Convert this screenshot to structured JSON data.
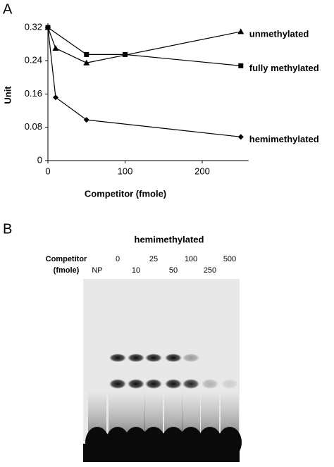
{
  "chart_data": {
    "type": "line",
    "panel_label": "A",
    "y_label": "Unit",
    "x_label": "Competitor (fmole)",
    "xlim": [
      0,
      260
    ],
    "xticks": [
      0,
      100,
      200
    ],
    "ylim": [
      0,
      0.33
    ],
    "yticks": [
      0,
      0.08,
      0.16,
      0.24,
      0.32
    ],
    "series": [
      {
        "name": "unmethylated",
        "color": "#000000",
        "marker": "triangle",
        "x": [
          0,
          10,
          50,
          250
        ],
        "values": [
          0.32,
          0.27,
          0.235,
          0.31
        ]
      },
      {
        "name": "fully methylated",
        "color": "#000000",
        "marker": "square",
        "x": [
          0,
          50,
          100,
          250
        ],
        "values": [
          0.32,
          0.255,
          0.255,
          0.228
        ]
      },
      {
        "name": "hemimethylated",
        "color": "#000000",
        "marker": "diamond",
        "x": [
          0,
          10,
          50,
          250
        ],
        "values": [
          0.32,
          0.152,
          0.098,
          0.057
        ]
      }
    ]
  },
  "panel_b": {
    "panel_label": "B",
    "title": "hemimethylated",
    "competitor_label": "Competitor",
    "unit_label": "(fmole)",
    "lanes": [
      "NP",
      "0",
      "10",
      "25",
      "50",
      "100",
      "250",
      "500"
    ]
  }
}
